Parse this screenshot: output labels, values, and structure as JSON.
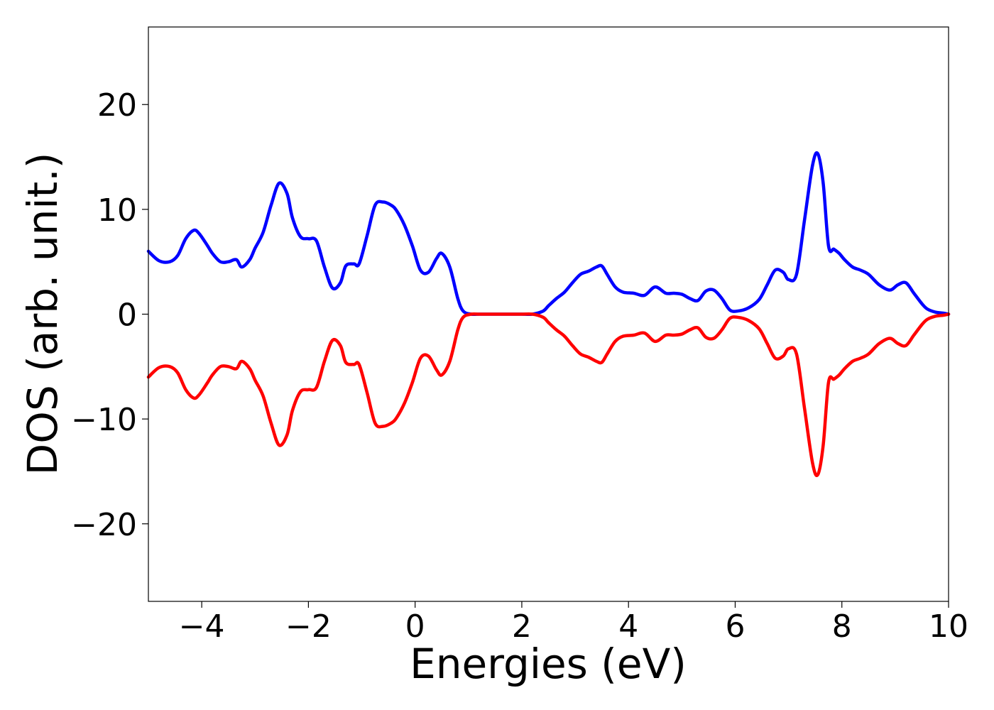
{
  "chart_data": {
    "type": "line",
    "title": "",
    "xlabel": "Energies (eV)",
    "ylabel": "DOS (arb. unit.)",
    "xlim": [
      -5,
      10
    ],
    "ylim": [
      -27.4,
      27.4
    ],
    "x_ticks": [
      -4,
      -2,
      0,
      2,
      4,
      6,
      8,
      10
    ],
    "x_tick_labels": [
      "−4",
      "−2",
      "0",
      "2",
      "4",
      "6",
      "8",
      "10"
    ],
    "y_ticks": [
      -20,
      -10,
      0,
      10,
      20
    ],
    "y_tick_labels": [
      "−20",
      "−10",
      "0",
      "10",
      "20"
    ],
    "grid": false,
    "legend": "none",
    "series": [
      {
        "color": "#0000ff",
        "x": [
          -5.0,
          -4.8,
          -4.6,
          -4.45,
          -4.3,
          -4.15,
          -4.05,
          -3.9,
          -3.8,
          -3.65,
          -3.5,
          -3.35,
          -3.25,
          -3.1,
          -3.0,
          -2.85,
          -2.7,
          -2.55,
          -2.4,
          -2.3,
          -2.15,
          -2.0,
          -1.85,
          -1.7,
          -1.55,
          -1.4,
          -1.3,
          -1.15,
          -1.05,
          -0.9,
          -0.75,
          -0.6,
          -0.45,
          -0.35,
          -0.2,
          -0.05,
          0.1,
          0.25,
          0.4,
          0.5,
          0.65,
          0.8,
          0.9,
          1.05,
          1.2,
          1.35,
          1.5,
          1.8,
          2.0,
          2.2,
          2.4,
          2.5,
          2.65,
          2.8,
          2.95,
          3.1,
          3.25,
          3.4,
          3.5,
          3.6,
          3.75,
          3.9,
          4.1,
          4.3,
          4.5,
          4.7,
          4.85,
          5.0,
          5.15,
          5.3,
          5.45,
          5.6,
          5.75,
          5.9,
          6.05,
          6.25,
          6.45,
          6.6,
          6.75,
          6.9,
          7.0,
          7.15,
          7.3,
          7.45,
          7.55,
          7.65,
          7.75,
          7.85,
          7.95,
          8.05,
          8.2,
          8.35,
          8.5,
          8.7,
          8.9,
          9.05,
          9.2,
          9.35,
          9.5,
          9.6,
          9.75,
          9.9,
          10.0
        ],
        "values": [
          6.0,
          5.1,
          5.0,
          5.6,
          7.2,
          8.0,
          7.7,
          6.6,
          5.8,
          5.0,
          5.0,
          5.2,
          4.5,
          5.2,
          6.3,
          7.8,
          10.4,
          12.5,
          11.5,
          9.2,
          7.4,
          7.2,
          7.0,
          4.5,
          2.5,
          3.0,
          4.6,
          4.8,
          4.8,
          7.5,
          10.4,
          10.7,
          10.4,
          9.9,
          8.5,
          6.5,
          4.2,
          4.0,
          5.3,
          5.8,
          4.5,
          1.5,
          0.3,
          0.0,
          0.0,
          0.0,
          0.0,
          0.0,
          0.0,
          0.0,
          0.3,
          0.8,
          1.5,
          2.1,
          3.0,
          3.8,
          4.1,
          4.5,
          4.6,
          3.8,
          2.6,
          2.1,
          2.0,
          1.8,
          2.6,
          2.0,
          2.0,
          1.9,
          1.5,
          1.3,
          2.2,
          2.3,
          1.5,
          0.4,
          0.3,
          0.6,
          1.4,
          2.8,
          4.2,
          4.0,
          3.3,
          3.8,
          9.0,
          14.2,
          15.3,
          12.5,
          6.5,
          6.2,
          5.8,
          5.2,
          4.5,
          4.2,
          3.8,
          2.8,
          2.3,
          2.8,
          3.0,
          2.0,
          1.0,
          0.5,
          0.2,
          0.1,
          0.0
        ]
      },
      {
        "color": "#ff0000",
        "x": [
          -5.0,
          -4.8,
          -4.6,
          -4.45,
          -4.3,
          -4.15,
          -4.05,
          -3.9,
          -3.8,
          -3.65,
          -3.5,
          -3.35,
          -3.25,
          -3.1,
          -3.0,
          -2.85,
          -2.7,
          -2.55,
          -2.4,
          -2.3,
          -2.15,
          -2.0,
          -1.85,
          -1.7,
          -1.55,
          -1.4,
          -1.3,
          -1.15,
          -1.05,
          -0.9,
          -0.75,
          -0.6,
          -0.45,
          -0.35,
          -0.2,
          -0.05,
          0.1,
          0.25,
          0.4,
          0.5,
          0.65,
          0.8,
          0.9,
          1.05,
          1.2,
          1.35,
          1.5,
          1.8,
          2.0,
          2.2,
          2.4,
          2.5,
          2.65,
          2.8,
          2.95,
          3.1,
          3.25,
          3.4,
          3.5,
          3.6,
          3.75,
          3.9,
          4.1,
          4.3,
          4.5,
          4.7,
          4.85,
          5.0,
          5.15,
          5.3,
          5.45,
          5.6,
          5.75,
          5.9,
          6.05,
          6.25,
          6.45,
          6.6,
          6.75,
          6.9,
          7.0,
          7.15,
          7.3,
          7.45,
          7.55,
          7.65,
          7.75,
          7.85,
          7.95,
          8.05,
          8.2,
          8.35,
          8.5,
          8.7,
          8.9,
          9.05,
          9.2,
          9.35,
          9.5,
          9.6,
          9.75,
          9.9,
          10.0
        ],
        "values": [
          -6.0,
          -5.1,
          -5.0,
          -5.6,
          -7.2,
          -8.0,
          -7.7,
          -6.6,
          -5.8,
          -5.0,
          -5.0,
          -5.2,
          -4.5,
          -5.2,
          -6.3,
          -7.8,
          -10.4,
          -12.5,
          -11.5,
          -9.2,
          -7.4,
          -7.2,
          -7.0,
          -4.5,
          -2.5,
          -3.0,
          -4.6,
          -4.8,
          -4.8,
          -7.5,
          -10.4,
          -10.7,
          -10.4,
          -9.9,
          -8.5,
          -6.5,
          -4.2,
          -4.0,
          -5.3,
          -5.8,
          -4.5,
          -1.5,
          -0.3,
          -0.0,
          -0.0,
          -0.0,
          -0.0,
          -0.0,
          -0.0,
          -0.0,
          -0.3,
          -0.8,
          -1.5,
          -2.1,
          -3.0,
          -3.8,
          -4.1,
          -4.5,
          -4.6,
          -3.8,
          -2.6,
          -2.1,
          -2.0,
          -1.8,
          -2.6,
          -2.0,
          -2.0,
          -1.9,
          -1.5,
          -1.3,
          -2.2,
          -2.3,
          -1.5,
          -0.4,
          -0.3,
          -0.6,
          -1.4,
          -2.8,
          -4.2,
          -4.0,
          -3.3,
          -3.8,
          -9.0,
          -14.2,
          -15.3,
          -12.5,
          -6.5,
          -6.2,
          -5.8,
          -5.2,
          -4.5,
          -4.2,
          -3.8,
          -2.8,
          -2.3,
          -2.8,
          -3.0,
          -2.0,
          -1.0,
          -0.5,
          -0.2,
          -0.1,
          -0.0
        ]
      }
    ]
  }
}
